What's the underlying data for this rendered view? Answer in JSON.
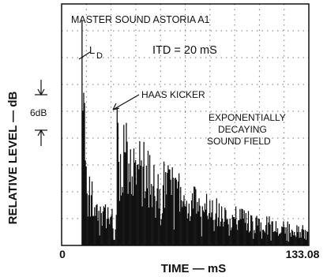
{
  "chart_data": {
    "type": "bar",
    "title": "MASTER SOUND ASTORIA A1",
    "subtitle": "ITD = 20 mS",
    "xlabel": "TIME — mS",
    "ylabel": "RELATIVE LEVEL — dB",
    "xlim": [
      0,
      133.08
    ],
    "x_tick_labels": [
      "0",
      "133.08"
    ],
    "scale_marker": "6dB",
    "grid": true,
    "annotations": {
      "direct": "L",
      "direct_sub": "D",
      "kicker": "HAAS KICKER",
      "field_line1": "EXPONENTIALLY",
      "field_line2": "DECAYING",
      "field_line3": "SOUND FIELD"
    },
    "peaks": {
      "direct_time_ms": 11.0,
      "direct_level": 0.93,
      "kicker_time_ms": 30.0,
      "kicker_level": 0.57
    },
    "colors": {
      "ink": "#111111",
      "grid": "#777777",
      "background": "#ffffff"
    }
  }
}
